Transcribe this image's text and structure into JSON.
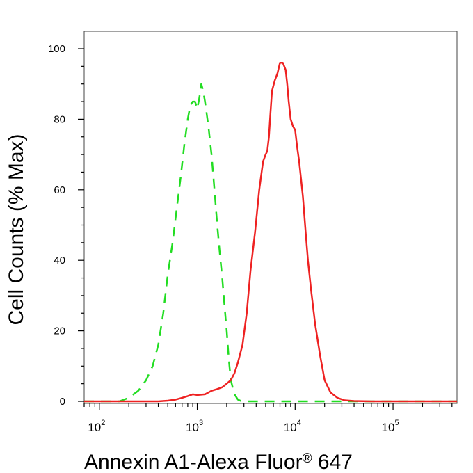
{
  "chart_data": {
    "type": "line",
    "xlabel": "Annexin A1-Alexa Fluor",
    "xlabel_mark": "®",
    "xlabel_suffix": " 647",
    "ylabel": "Cell Counts (% Max)",
    "x_scale": "log",
    "xlim": [
      70,
      450000
    ],
    "ylim": [
      0,
      100
    ],
    "x_ticks": [
      {
        "base": "10",
        "exp": "2",
        "value": 100
      },
      {
        "base": "10",
        "exp": "3",
        "value": 1000
      },
      {
        "base": "10",
        "exp": "4",
        "value": 10000
      },
      {
        "base": "10",
        "exp": "5",
        "value": 100000
      }
    ],
    "y_ticks": [
      "0",
      "20",
      "40",
      "60",
      "80",
      "100"
    ],
    "grid": false,
    "series": [
      {
        "color": "#22dd22",
        "style": "dashed",
        "x": [
          70,
          110,
          160,
          200,
          250,
          300,
          350,
          400,
          450,
          500,
          560,
          620,
          680,
          740,
          800,
          850,
          900,
          950,
          1000,
          1050,
          1100,
          1150,
          1200,
          1300,
          1400,
          1500,
          1600,
          1700,
          1800,
          1900,
          2000,
          2100,
          2200,
          2400,
          2600,
          2800,
          3000,
          3300,
          4000,
          10000,
          450000
        ],
        "y": [
          0,
          0,
          0,
          1,
          3,
          6,
          10,
          16,
          25,
          36,
          45,
          55,
          64,
          73,
          80,
          84,
          85,
          85,
          83,
          86,
          90,
          88,
          85,
          78,
          70,
          60,
          50,
          42,
          35,
          27,
          20,
          12,
          6,
          2,
          0.5,
          0.1,
          0,
          0,
          0,
          0,
          0
        ]
      },
      {
        "color": "#ee2222",
        "style": "solid",
        "x": [
          70,
          300,
          400,
          500,
          600,
          700,
          800,
          900,
          1000,
          1200,
          1400,
          1600,
          1800,
          2000,
          2200,
          2400,
          2600,
          2900,
          3200,
          3500,
          3900,
          4300,
          4700,
          5000,
          5200,
          5400,
          5600,
          5800,
          6200,
          6600,
          7000,
          7500,
          8000,
          8300,
          8600,
          9000,
          9500,
          10000,
          10500,
          11000,
          12000,
          12800,
          13500,
          14500,
          16000,
          18000,
          20000,
          23000,
          27000,
          32000,
          40000,
          60000,
          100000,
          450000
        ],
        "y": [
          0,
          0,
          0,
          0.2,
          0.5,
          1,
          1.5,
          2,
          1.8,
          2,
          3,
          3.5,
          4,
          5,
          6,
          8,
          11,
          16,
          25,
          37,
          48,
          60,
          68,
          70,
          71,
          75,
          82,
          88,
          91,
          93,
          96,
          96,
          94,
          90,
          85,
          80,
          78,
          77,
          72,
          68,
          58,
          48,
          40,
          32,
          22,
          13,
          6,
          2.5,
          1,
          0.3,
          0.1,
          0,
          0,
          0
        ]
      }
    ]
  }
}
